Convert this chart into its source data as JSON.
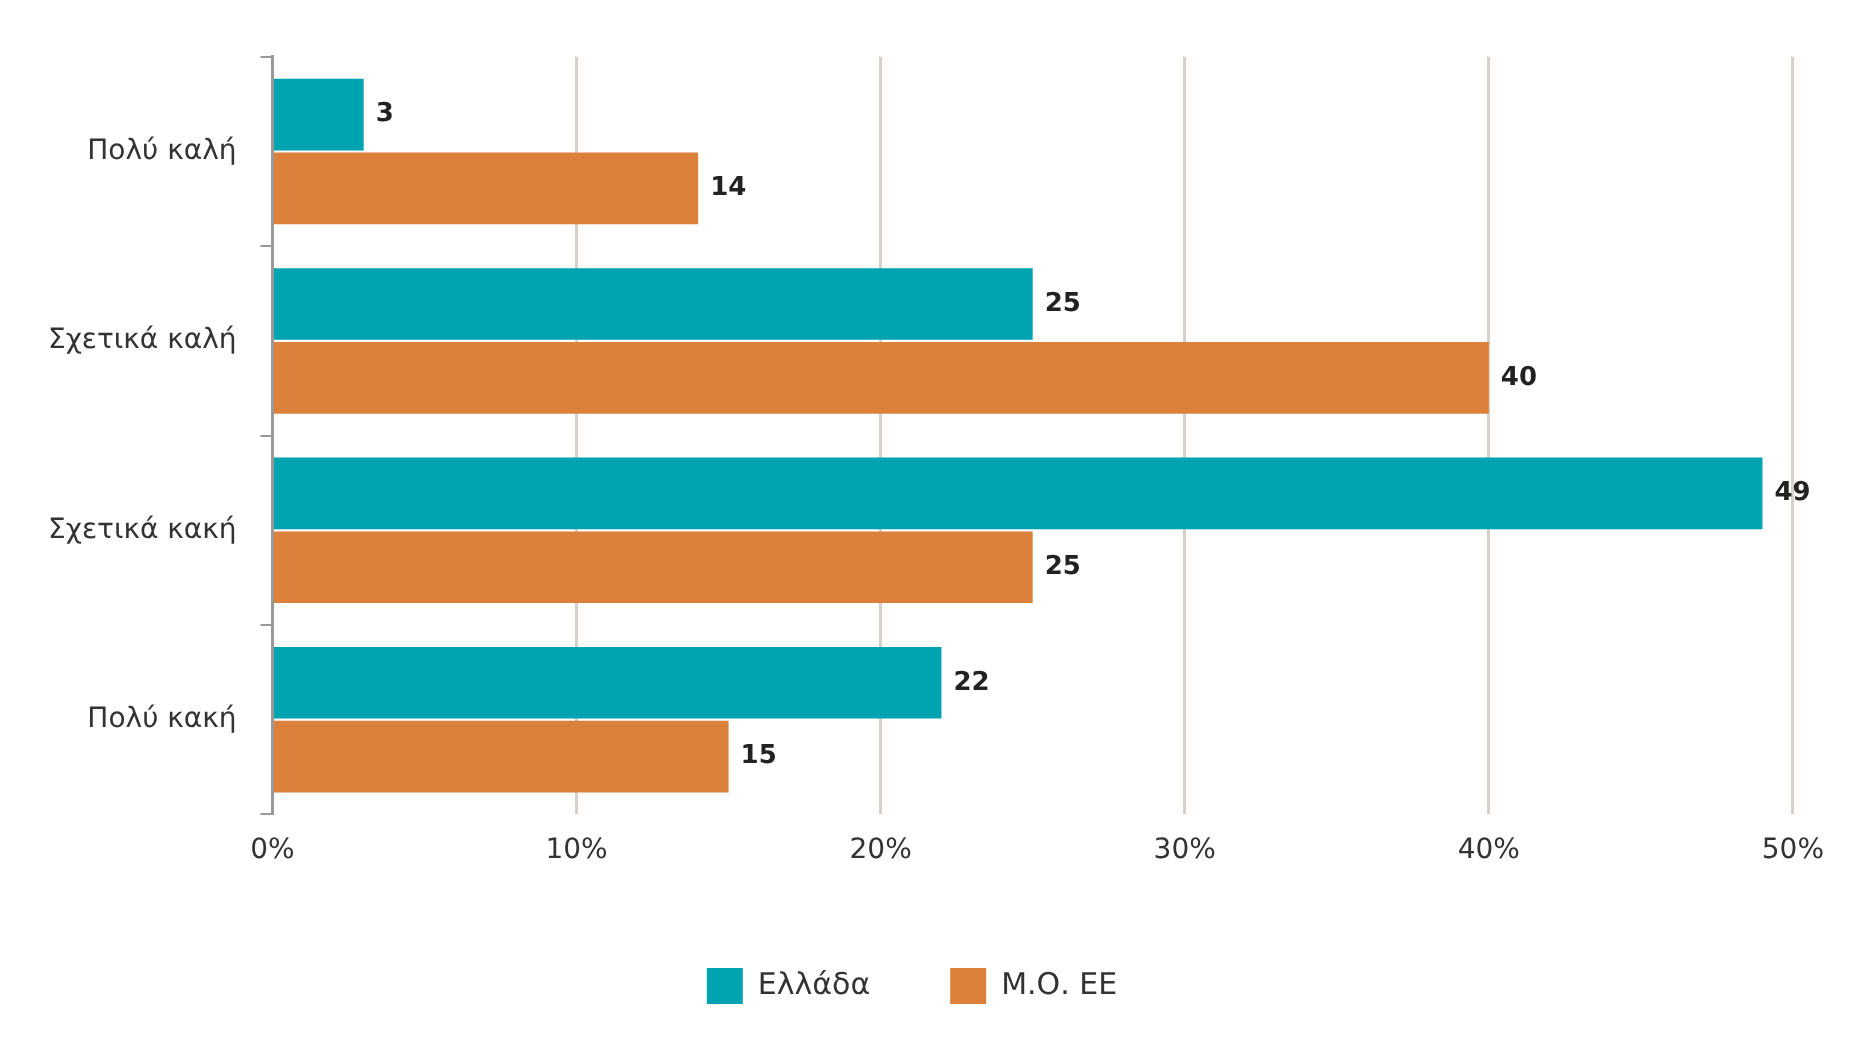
{
  "chart_data": {
    "type": "bar",
    "orientation": "horizontal",
    "categories": [
      "Πολύ καλή",
      "Σχετικά καλή",
      "Σχετικά κακή",
      "Πολύ κακή"
    ],
    "series": [
      {
        "name": "Ελλάδα",
        "color": "#00a3b0",
        "values": [
          3,
          25,
          49,
          22
        ]
      },
      {
        "name": "Μ.Ο. ΕΕ",
        "color": "#dc813b",
        "values": [
          14,
          40,
          25,
          15
        ]
      }
    ],
    "xlim": [
      0,
      50
    ],
    "xticks": [
      {
        "value": 0,
        "label": "0%"
      },
      {
        "value": 10,
        "label": "10%"
      },
      {
        "value": 20,
        "label": "20%"
      },
      {
        "value": 30,
        "label": "30%"
      },
      {
        "value": 40,
        "label": "40%"
      },
      {
        "value": 50,
        "label": "50%"
      }
    ],
    "grid": "x",
    "legend": "bottom",
    "data_labels": true
  }
}
